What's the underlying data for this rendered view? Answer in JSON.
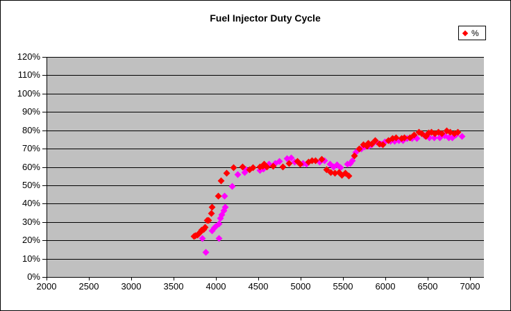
{
  "chart_data": {
    "type": "scatter",
    "title": "Fuel Injector Duty Cycle",
    "xlabel": "",
    "ylabel": "",
    "xlim": [
      2000,
      7165
    ],
    "ylim": [
      0,
      120
    ],
    "x_ticks": [
      2000,
      2500,
      3000,
      3500,
      4000,
      4500,
      5000,
      5500,
      6000,
      6500,
      7000
    ],
    "x_tick_labels": [
      "2000",
      "2500",
      "3000",
      "3500",
      "4000",
      "4500",
      "5000",
      "5500",
      "6000",
      "6500",
      "7000"
    ],
    "y_ticks": [
      0,
      10,
      20,
      30,
      40,
      50,
      60,
      70,
      80,
      90,
      100,
      110,
      120
    ],
    "y_tick_labels": [
      "0%",
      "10%",
      "20%",
      "30%",
      "40%",
      "50%",
      "60%",
      "70%",
      "80%",
      "90%",
      "100%",
      "110%",
      "120%"
    ],
    "grid": "horizontal",
    "grid_color": "#000000",
    "plot_bg": "#C0C0C0",
    "legend": {
      "position": "top-right",
      "entries": [
        {
          "label": "%",
          "marker": "diamond",
          "color": "#FF0000"
        }
      ]
    },
    "series": [
      {
        "name": "%",
        "in_legend": true,
        "color": "#FF0000",
        "marker": "diamond",
        "z": 3,
        "points": [
          [
            3740,
            22
          ],
          [
            3760,
            22.5
          ],
          [
            3780,
            23
          ],
          [
            3800,
            23.5
          ],
          [
            3815,
            24.5
          ],
          [
            3830,
            25.5
          ],
          [
            3855,
            26
          ],
          [
            3870,
            27
          ],
          [
            3900,
            31
          ],
          [
            3915,
            31
          ],
          [
            3945,
            34.5
          ],
          [
            3955,
            38
          ],
          [
            4030,
            44
          ],
          [
            4065,
            52.5
          ],
          [
            4130,
            56.5
          ],
          [
            4210,
            59.5
          ],
          [
            4320,
            60
          ],
          [
            4400,
            58.5
          ],
          [
            4440,
            59.5
          ],
          [
            4525,
            60
          ],
          [
            4550,
            60.5
          ],
          [
            4570,
            61.5
          ],
          [
            4600,
            60
          ],
          [
            4675,
            60.5
          ],
          [
            4790,
            60
          ],
          [
            4865,
            62
          ],
          [
            4960,
            63
          ],
          [
            4995,
            61.5
          ],
          [
            5095,
            62.5
          ],
          [
            5135,
            63.5
          ],
          [
            5175,
            63.5
          ],
          [
            5250,
            64
          ],
          [
            5310,
            58.5
          ],
          [
            5360,
            57
          ],
          [
            5410,
            56.5
          ],
          [
            5455,
            57
          ],
          [
            5490,
            55.5
          ],
          [
            5530,
            56.5
          ],
          [
            5570,
            55
          ],
          [
            5640,
            66
          ],
          [
            5690,
            70
          ],
          [
            5740,
            72
          ],
          [
            5780,
            71.5
          ],
          [
            5800,
            73
          ],
          [
            5840,
            72.5
          ],
          [
            5880,
            74.5
          ],
          [
            5930,
            72.5
          ],
          [
            5970,
            72
          ],
          [
            6040,
            74.5
          ],
          [
            6085,
            75.5
          ],
          [
            6125,
            76
          ],
          [
            6190,
            75.5
          ],
          [
            6230,
            76
          ],
          [
            6290,
            76
          ],
          [
            6340,
            77.5
          ],
          [
            6400,
            79
          ],
          [
            6430,
            78
          ],
          [
            6480,
            76.5
          ],
          [
            6510,
            78.5
          ],
          [
            6550,
            79
          ],
          [
            6590,
            78
          ],
          [
            6630,
            79
          ],
          [
            6670,
            78
          ],
          [
            6730,
            79.5
          ],
          [
            6770,
            79
          ],
          [
            6820,
            78
          ],
          [
            6860,
            79
          ]
        ]
      },
      {
        "name": "",
        "in_legend": false,
        "color": "#FF00FF",
        "marker": "diamond",
        "z": 2,
        "points": [
          [
            3840,
            21
          ],
          [
            3880,
            13.5
          ],
          [
            3955,
            25
          ],
          [
            3980,
            26.5
          ],
          [
            3995,
            27.5
          ],
          [
            4035,
            21
          ],
          [
            4040,
            29
          ],
          [
            4055,
            32
          ],
          [
            4070,
            34
          ],
          [
            4095,
            36
          ],
          [
            4100,
            44
          ],
          [
            4115,
            38
          ],
          [
            4190,
            49.5
          ],
          [
            4255,
            56
          ],
          [
            4340,
            57
          ],
          [
            4360,
            58.5
          ],
          [
            4520,
            58
          ],
          [
            4560,
            59
          ],
          [
            4625,
            61.5
          ],
          [
            4705,
            62
          ],
          [
            4750,
            63
          ],
          [
            4840,
            64.5
          ],
          [
            4890,
            65
          ],
          [
            4930,
            62.5
          ],
          [
            5030,
            62
          ],
          [
            5070,
            61.5
          ],
          [
            5230,
            62.5
          ],
          [
            5285,
            63.5
          ],
          [
            5350,
            61.5
          ],
          [
            5390,
            60
          ],
          [
            5430,
            61
          ],
          [
            5475,
            59.5
          ],
          [
            5550,
            61.5
          ],
          [
            5590,
            62
          ],
          [
            5615,
            63.5
          ],
          [
            5650,
            68
          ],
          [
            5715,
            70
          ],
          [
            5760,
            71
          ],
          [
            5810,
            71.5
          ],
          [
            5845,
            72
          ],
          [
            5895,
            73.5
          ],
          [
            5945,
            72.5
          ],
          [
            6000,
            73.5
          ],
          [
            6060,
            74
          ],
          [
            6110,
            74
          ],
          [
            6160,
            74.5
          ],
          [
            6210,
            74.5
          ],
          [
            6260,
            75.5
          ],
          [
            6315,
            75.5
          ],
          [
            6370,
            75.5
          ],
          [
            6460,
            77
          ],
          [
            6520,
            76
          ],
          [
            6580,
            76
          ],
          [
            6645,
            76
          ],
          [
            6700,
            77
          ],
          [
            6750,
            76
          ],
          [
            6795,
            76
          ],
          [
            6835,
            77.5
          ],
          [
            6910,
            76.5
          ]
        ]
      }
    ]
  }
}
